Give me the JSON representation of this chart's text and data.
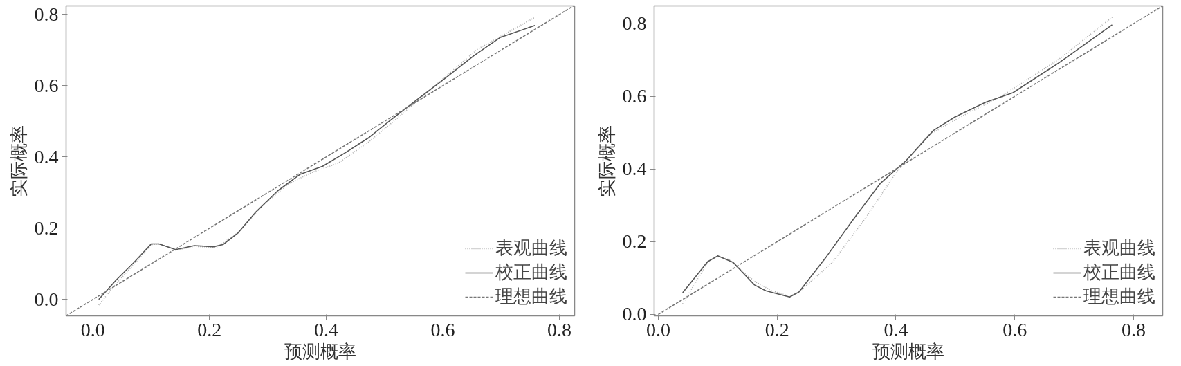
{
  "chart_data": [
    {
      "type": "line",
      "xlabel": "预测概率",
      "ylabel": "实际概率",
      "xlim": [
        -0.046,
        0.826
      ],
      "ylim": [
        -0.046,
        0.824
      ],
      "xticks": [
        {
          "value": 0,
          "label": "0.0"
        },
        0.2,
        0.4,
        0.6,
        0.8
      ],
      "yticks": [
        {
          "value": 0,
          "label": "0.0"
        },
        0.2,
        0.4,
        0.6,
        0.8
      ],
      "grid": false,
      "legend": "bottom right",
      "series": [
        {
          "name": "表观曲线",
          "color": "#aaaaaa",
          "line_style": "dotted",
          "x": [
            0.01,
            0.039,
            0.071,
            0.1,
            0.116,
            0.142,
            0.174,
            0.213,
            0.252,
            0.291,
            0.336,
            0.375,
            0.42,
            0.472,
            0.523,
            0.588,
            0.659,
            0.758
          ],
          "values": [
            -0.016,
            0.043,
            0.1,
            0.154,
            0.156,
            0.138,
            0.149,
            0.146,
            0.192,
            0.264,
            0.325,
            0.356,
            0.382,
            0.441,
            0.51,
            0.602,
            0.702,
            0.792
          ]
        },
        {
          "name": "校正曲线",
          "color": "#555555",
          "line_style": "solid",
          "x": [
            0.01,
            0.039,
            0.071,
            0.1,
            0.113,
            0.142,
            0.174,
            0.207,
            0.223,
            0.249,
            0.278,
            0.317,
            0.355,
            0.394,
            0.433,
            0.472,
            0.51,
            0.556,
            0.601,
            0.653,
            0.698,
            0.758
          ],
          "values": [
            0.0,
            0.053,
            0.105,
            0.156,
            0.156,
            0.14,
            0.151,
            0.148,
            0.154,
            0.187,
            0.243,
            0.305,
            0.351,
            0.374,
            0.412,
            0.453,
            0.503,
            0.561,
            0.617,
            0.684,
            0.735,
            0.769
          ]
        },
        {
          "name": "理想曲线",
          "color": "#777777",
          "line_style": "dashed",
          "x": [
            -0.046,
            0.824
          ],
          "values": [
            -0.046,
            0.824
          ]
        }
      ]
    },
    {
      "type": "line",
      "xlabel": "预测概率",
      "ylabel": "实际概率",
      "xlim": [
        -0.007,
        0.849
      ],
      "ylim": [
        -0.004,
        0.849
      ],
      "xticks": [
        {
          "value": 0,
          "label": "0.0"
        },
        0.2,
        0.4,
        0.6,
        0.8
      ],
      "yticks": [
        {
          "value": 0,
          "label": "0.0"
        },
        0.2,
        0.4,
        0.6,
        0.8
      ],
      "grid": false,
      "legend": "bottom right",
      "series": [
        {
          "name": "表观曲线",
          "color": "#aaaaaa",
          "line_style": "dotted",
          "x": [
            0.041,
            0.083,
            0.1,
            0.119,
            0.162,
            0.191,
            0.221,
            0.237,
            0.293,
            0.348,
            0.401,
            0.453,
            0.505,
            0.577,
            0.675,
            0.764
          ],
          "values": [
            0.029,
            0.143,
            0.161,
            0.151,
            0.091,
            0.065,
            0.05,
            0.062,
            0.143,
            0.263,
            0.392,
            0.491,
            0.54,
            0.6,
            0.703,
            0.818
          ]
        },
        {
          "name": "校正曲线",
          "color": "#555555",
          "line_style": "solid",
          "x": [
            0.041,
            0.083,
            0.1,
            0.126,
            0.162,
            0.181,
            0.221,
            0.237,
            0.283,
            0.329,
            0.374,
            0.417,
            0.463,
            0.499,
            0.551,
            0.597,
            0.675,
            0.764
          ],
          "values": [
            0.06,
            0.145,
            0.161,
            0.143,
            0.081,
            0.065,
            0.048,
            0.062,
            0.159,
            0.263,
            0.361,
            0.423,
            0.506,
            0.543,
            0.584,
            0.61,
            0.693,
            0.797
          ]
        },
        {
          "name": "理想曲线",
          "color": "#777777",
          "line_style": "dashed",
          "x": [
            0.0,
            0.849
          ],
          "values": [
            0.0,
            0.849
          ]
        }
      ]
    }
  ]
}
